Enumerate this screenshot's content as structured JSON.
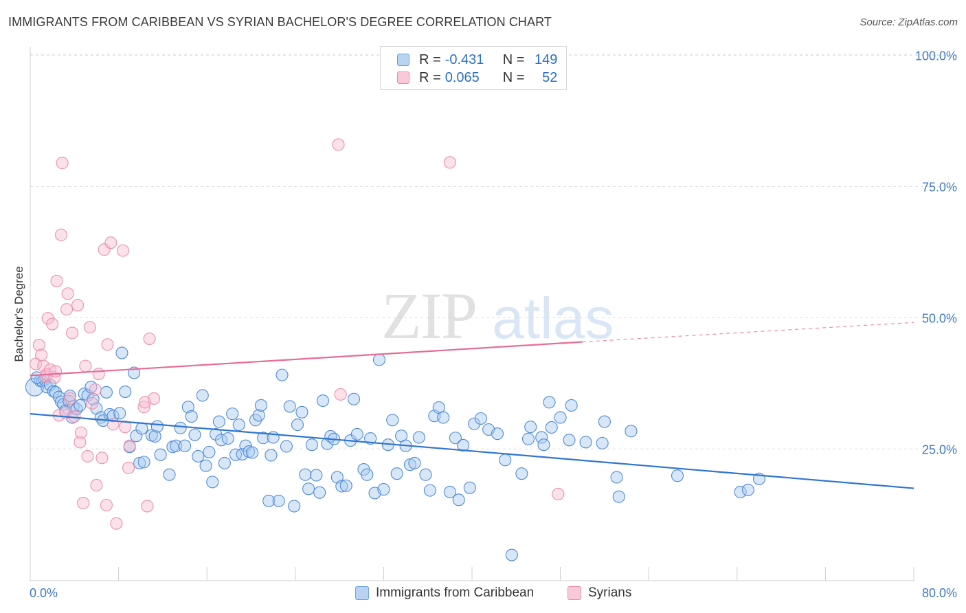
{
  "title": "IMMIGRANTS FROM CARIBBEAN VS SYRIAN BACHELOR'S DEGREE CORRELATION CHART",
  "source": "Source: ZipAtlas.com",
  "watermark": {
    "zip": "ZIP",
    "atlas": "atlas"
  },
  "legend_top": {
    "rows": [
      {
        "r_label": "R =",
        "r_value": "-0.431",
        "n_label": "N =",
        "n_value": "149",
        "color": "#6aa1e3"
      },
      {
        "r_label": "R =",
        "r_value": "0.065",
        "n_label": "N =",
        "n_value": "52",
        "color": "#f08aab"
      }
    ]
  },
  "legend_bottom": {
    "items": [
      {
        "label": "Immigrants from Caribbean",
        "color": "#6aa1e3"
      },
      {
        "label": "Syrians",
        "color": "#f08aab"
      }
    ]
  },
  "chart_data": {
    "type": "scatter",
    "title": "IMMIGRANTS FROM CARIBBEAN VS SYRIAN BACHELOR'S DEGREE CORRELATION CHART",
    "xlabel": "",
    "ylabel": "Bachelor's Degree",
    "xlim": [
      0,
      80
    ],
    "ylim": [
      0,
      103
    ],
    "x_tick_labels": {
      "0": "0.0%",
      "80": "80.0%"
    },
    "y_ticks": [
      25,
      50,
      75,
      100
    ],
    "y_tick_labels": [
      "25.0%",
      "50.0%",
      "75.0%",
      "100.0%"
    ],
    "grid": "horizontal dashed",
    "colors": {
      "caribbean": "#2f75d1",
      "caribbean_fill": "#a9c9f0",
      "syrians": "#e86c95",
      "syrians_fill": "#f6bcd0"
    },
    "series": [
      {
        "name": "Immigrants from Caribbean",
        "trend": {
          "x": [
            0,
            80
          ],
          "y": [
            31.7,
            17.5
          ]
        },
        "points": [
          [
            0.4,
            36.8
          ],
          [
            0.9,
            38.0
          ],
          [
            1.1,
            37.9
          ],
          [
            1.3,
            38.2
          ],
          [
            1.5,
            36.8
          ],
          [
            1.8,
            37.2
          ],
          [
            2.1,
            36.0
          ],
          [
            2.3,
            35.8
          ],
          [
            2.6,
            34.9
          ],
          [
            2.8,
            34.0
          ],
          [
            3.0,
            33.5
          ],
          [
            3.2,
            32.3
          ],
          [
            3.5,
            34.1
          ],
          [
            3.6,
            35.1
          ],
          [
            3.8,
            31.0
          ],
          [
            3.9,
            33.1
          ],
          [
            4.2,
            32.6
          ],
          [
            4.5,
            33.3
          ],
          [
            4.9,
            35.5
          ],
          [
            5.2,
            35.2
          ],
          [
            5.5,
            36.8
          ],
          [
            5.7,
            34.5
          ],
          [
            6.0,
            32.7
          ],
          [
            6.4,
            31.0
          ],
          [
            6.6,
            30.4
          ],
          [
            6.9,
            35.8
          ],
          [
            7.2,
            31.6
          ],
          [
            7.5,
            31.3
          ],
          [
            8.1,
            31.8
          ],
          [
            8.3,
            43.3
          ],
          [
            8.6,
            35.9
          ],
          [
            9.0,
            25.4
          ],
          [
            9.4,
            39.5
          ],
          [
            9.6,
            27.5
          ],
          [
            9.9,
            22.3
          ],
          [
            10.1,
            28.9
          ],
          [
            10.3,
            22.5
          ],
          [
            11.0,
            27.6
          ],
          [
            11.3,
            27.4
          ],
          [
            11.5,
            29.3
          ],
          [
            11.8,
            23.9
          ],
          [
            12.6,
            20.1
          ],
          [
            12.9,
            25.4
          ],
          [
            13.2,
            25.6
          ],
          [
            13.6,
            29.0
          ],
          [
            14.0,
            25.6
          ],
          [
            14.3,
            33.0
          ],
          [
            14.6,
            31.2
          ],
          [
            14.9,
            27.7
          ],
          [
            15.2,
            23.6
          ],
          [
            15.6,
            35.2
          ],
          [
            15.9,
            21.8
          ],
          [
            16.2,
            24.4
          ],
          [
            16.5,
            18.7
          ],
          [
            16.8,
            27.8
          ],
          [
            17.1,
            30.2
          ],
          [
            17.3,
            26.7
          ],
          [
            17.6,
            22.3
          ],
          [
            17.9,
            27.0
          ],
          [
            18.3,
            31.7
          ],
          [
            18.6,
            23.9
          ],
          [
            18.9,
            29.6
          ],
          [
            19.2,
            24.0
          ],
          [
            19.5,
            25.6
          ],
          [
            19.8,
            24.5
          ],
          [
            20.1,
            24.3
          ],
          [
            20.4,
            30.5
          ],
          [
            20.7,
            31.4
          ],
          [
            20.9,
            33.3
          ],
          [
            21.1,
            27.1
          ],
          [
            21.6,
            15.1
          ],
          [
            21.8,
            23.8
          ],
          [
            22.0,
            27.2
          ],
          [
            22.5,
            15.1
          ],
          [
            22.8,
            39.1
          ],
          [
            23.2,
            25.5
          ],
          [
            23.5,
            33.1
          ],
          [
            23.9,
            14.1
          ],
          [
            24.2,
            29.6
          ],
          [
            24.6,
            32.0
          ],
          [
            24.9,
            20.1
          ],
          [
            25.2,
            17.4
          ],
          [
            25.5,
            25.8
          ],
          [
            25.9,
            20.0
          ],
          [
            26.2,
            16.7
          ],
          [
            26.5,
            34.2
          ],
          [
            26.9,
            26.0
          ],
          [
            27.2,
            27.4
          ],
          [
            27.5,
            26.9
          ],
          [
            27.8,
            19.6
          ],
          [
            28.2,
            17.9
          ],
          [
            28.6,
            18.0
          ],
          [
            29.0,
            26.6
          ],
          [
            29.3,
            34.5
          ],
          [
            29.6,
            27.8
          ],
          [
            30.2,
            21.1
          ],
          [
            30.5,
            20.1
          ],
          [
            30.8,
            27.0
          ],
          [
            31.2,
            16.6
          ],
          [
            31.6,
            42.0
          ],
          [
            32.0,
            17.3
          ],
          [
            32.4,
            25.8
          ],
          [
            32.8,
            30.5
          ],
          [
            33.2,
            20.3
          ],
          [
            33.6,
            27.5
          ],
          [
            34.0,
            25.6
          ],
          [
            34.4,
            22.0
          ],
          [
            34.8,
            22.3
          ],
          [
            35.2,
            27.2
          ],
          [
            35.8,
            20.1
          ],
          [
            36.2,
            17.1
          ],
          [
            36.6,
            31.3
          ],
          [
            37.0,
            32.9
          ],
          [
            37.4,
            31.0
          ],
          [
            38.0,
            16.8
          ],
          [
            38.5,
            27.1
          ],
          [
            38.8,
            15.3
          ],
          [
            39.2,
            25.7
          ],
          [
            39.8,
            17.6
          ],
          [
            40.2,
            29.8
          ],
          [
            40.8,
            30.8
          ],
          [
            41.5,
            28.7
          ],
          [
            42.3,
            27.9
          ],
          [
            43.0,
            22.9
          ],
          [
            43.6,
            4.8
          ],
          [
            44.5,
            20.3
          ],
          [
            45.1,
            26.9
          ],
          [
            45.3,
            29.2
          ],
          [
            46.3,
            27.2
          ],
          [
            46.5,
            25.8
          ],
          [
            47.0,
            33.9
          ],
          [
            47.2,
            29.1
          ],
          [
            48.0,
            31.0
          ],
          [
            48.8,
            26.7
          ],
          [
            49.0,
            33.3
          ],
          [
            50.3,
            26.3
          ],
          [
            51.8,
            26.1
          ],
          [
            52.0,
            30.2
          ],
          [
            53.1,
            19.6
          ],
          [
            53.3,
            15.9
          ],
          [
            54.4,
            28.4
          ],
          [
            58.6,
            19.9
          ],
          [
            64.3,
            16.8
          ],
          [
            65.0,
            17.2
          ],
          [
            66.0,
            19.3
          ],
          [
            0.6,
            38.6
          ]
        ]
      },
      {
        "name": "Syrians",
        "trend": {
          "x": [
            0,
            50
          ],
          "y": [
            39.0,
            45.4
          ]
        },
        "trend_dashed": {
          "x": [
            50,
            80
          ],
          "y": [
            45.4,
            49.1
          ]
        },
        "points": [
          [
            0.5,
            41.2
          ],
          [
            0.8,
            44.8
          ],
          [
            1.0,
            42.9
          ],
          [
            1.2,
            40.8
          ],
          [
            1.4,
            38.8
          ],
          [
            1.5,
            39.2
          ],
          [
            1.6,
            49.9
          ],
          [
            1.8,
            40.1
          ],
          [
            2.0,
            48.8
          ],
          [
            2.2,
            38.6
          ],
          [
            2.3,
            39.8
          ],
          [
            2.4,
            57.0
          ],
          [
            2.6,
            31.4
          ],
          [
            2.8,
            65.8
          ],
          [
            2.9,
            79.5
          ],
          [
            3.2,
            31.9
          ],
          [
            3.3,
            51.6
          ],
          [
            3.4,
            54.6
          ],
          [
            3.6,
            34.6
          ],
          [
            3.8,
            47.1
          ],
          [
            4.0,
            31.2
          ],
          [
            4.3,
            52.4
          ],
          [
            4.5,
            26.3
          ],
          [
            4.6,
            28.1
          ],
          [
            4.8,
            14.7
          ],
          [
            5.0,
            40.8
          ],
          [
            5.2,
            23.6
          ],
          [
            5.4,
            48.2
          ],
          [
            5.6,
            33.7
          ],
          [
            5.9,
            36.3
          ],
          [
            6.0,
            18.1
          ],
          [
            6.2,
            39.3
          ],
          [
            6.5,
            23.3
          ],
          [
            6.7,
            63.0
          ],
          [
            6.9,
            14.3
          ],
          [
            7.0,
            44.9
          ],
          [
            7.3,
            64.3
          ],
          [
            7.5,
            29.7
          ],
          [
            7.8,
            10.8
          ],
          [
            8.4,
            62.8
          ],
          [
            8.6,
            29.2
          ],
          [
            8.9,
            21.4
          ],
          [
            9.0,
            25.6
          ],
          [
            10.3,
            33.0
          ],
          [
            10.4,
            33.9
          ],
          [
            10.6,
            14.1
          ],
          [
            10.8,
            46.0
          ],
          [
            11.2,
            34.6
          ],
          [
            27.9,
            83.0
          ],
          [
            28.1,
            35.4
          ],
          [
            38.0,
            79.6
          ],
          [
            47.8,
            16.4
          ]
        ]
      }
    ]
  }
}
